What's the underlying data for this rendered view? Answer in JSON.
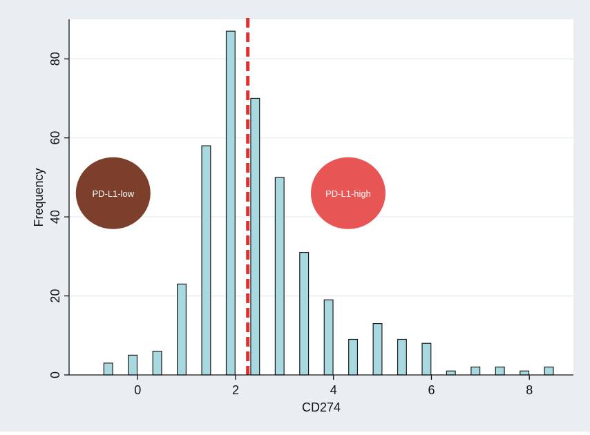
{
  "chart_data": {
    "type": "bar",
    "title": "",
    "xlabel": "CD274",
    "ylabel": "Frequency",
    "xlim": [
      -1.4,
      8.9
    ],
    "ylim": [
      0,
      90
    ],
    "x_ticks": [
      0,
      2,
      4,
      6,
      8
    ],
    "y_ticks": [
      0,
      20,
      40,
      60,
      80
    ],
    "grid": true,
    "bin_width": 0.18,
    "x": [
      -0.6,
      -0.1,
      0.4,
      0.9,
      1.4,
      1.9,
      2.4,
      2.9,
      3.4,
      3.9,
      4.4,
      4.9,
      5.4,
      5.9,
      6.4,
      6.9,
      7.4,
      7.9,
      8.4
    ],
    "values": [
      3,
      5,
      6,
      23,
      58,
      87,
      70,
      50,
      31,
      19,
      9,
      13,
      9,
      8,
      1,
      2,
      2,
      1,
      2
    ],
    "cutoff": 2.25,
    "annotations": [
      {
        "label": "PD-L1-low",
        "color": "#7b3f2b",
        "x": -0.5,
        "y": 46
      },
      {
        "label": "PD-L1-high",
        "color": "#e85555",
        "x": 4.3,
        "y": 46
      }
    ],
    "colors": {
      "background": "#e9eef2",
      "plot_background": "#ffffff",
      "bar_fill": "#a8d8e0",
      "bar_stroke": "#1a1a1a",
      "cutoff_line": "#e03030",
      "grid": "#eaf0f2"
    }
  }
}
